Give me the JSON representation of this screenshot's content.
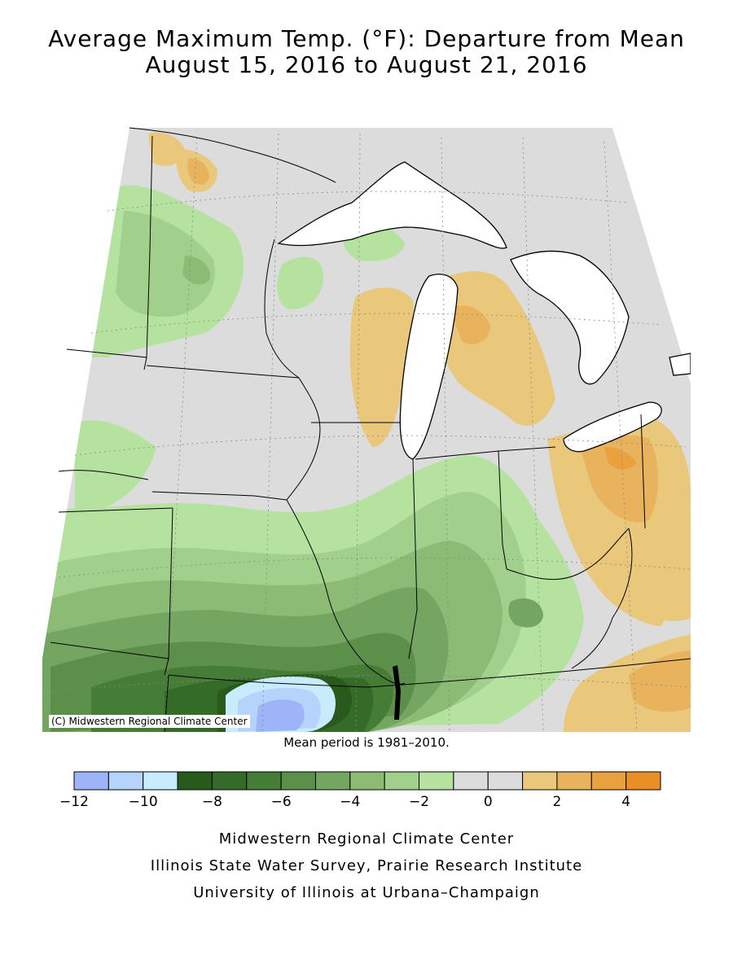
{
  "title_line1": "Average Maximum Temp. (°F): Departure from Mean",
  "title_line2": "August 15, 2016 to August 21, 2016",
  "copyright": "(C) Midwestern Regional Climate Center",
  "mean_period": "Mean period is 1981–2010.",
  "legend": {
    "colors": [
      "#9db4f9",
      "#b5d3fb",
      "#c8ecfd",
      "#285a1d",
      "#356b28",
      "#467d36",
      "#5c8f4a",
      "#74a661",
      "#8bbb75",
      "#a0d08c",
      "#b6e2a0",
      "#dcdcdc",
      "#dcdcdc",
      "#e9c77b",
      "#e8b35c",
      "#e9a03f",
      "#e98f25"
    ],
    "ticks": [
      "−12",
      "−10",
      "−8",
      "−6",
      "−4",
      "−2",
      "0",
      "2",
      "4"
    ]
  },
  "footer": {
    "line1": "Midwestern Regional Climate Center",
    "line2": "Illinois State Water Survey, Prairie Research Institute",
    "line3": "University of Illinois at Urbana–Champaign"
  },
  "map_colors": {
    "neutral": "#dcdcdc",
    "green_light": "#b6e2a0",
    "green_2": "#a0d08c",
    "green_3": "#8bbb75",
    "green_4": "#74a661",
    "green_5": "#5c8f4a",
    "green_6": "#467d36",
    "green_7": "#356b28",
    "green_dark": "#285a1d",
    "blue_light": "#c8ecfd",
    "blue_2": "#b5d3fb",
    "blue_3": "#9db4f9",
    "orange_1": "#e9c77b",
    "orange_2": "#e8b35c",
    "orange_3": "#e9a03f",
    "water": "#ffffff",
    "lines": "#000000"
  }
}
